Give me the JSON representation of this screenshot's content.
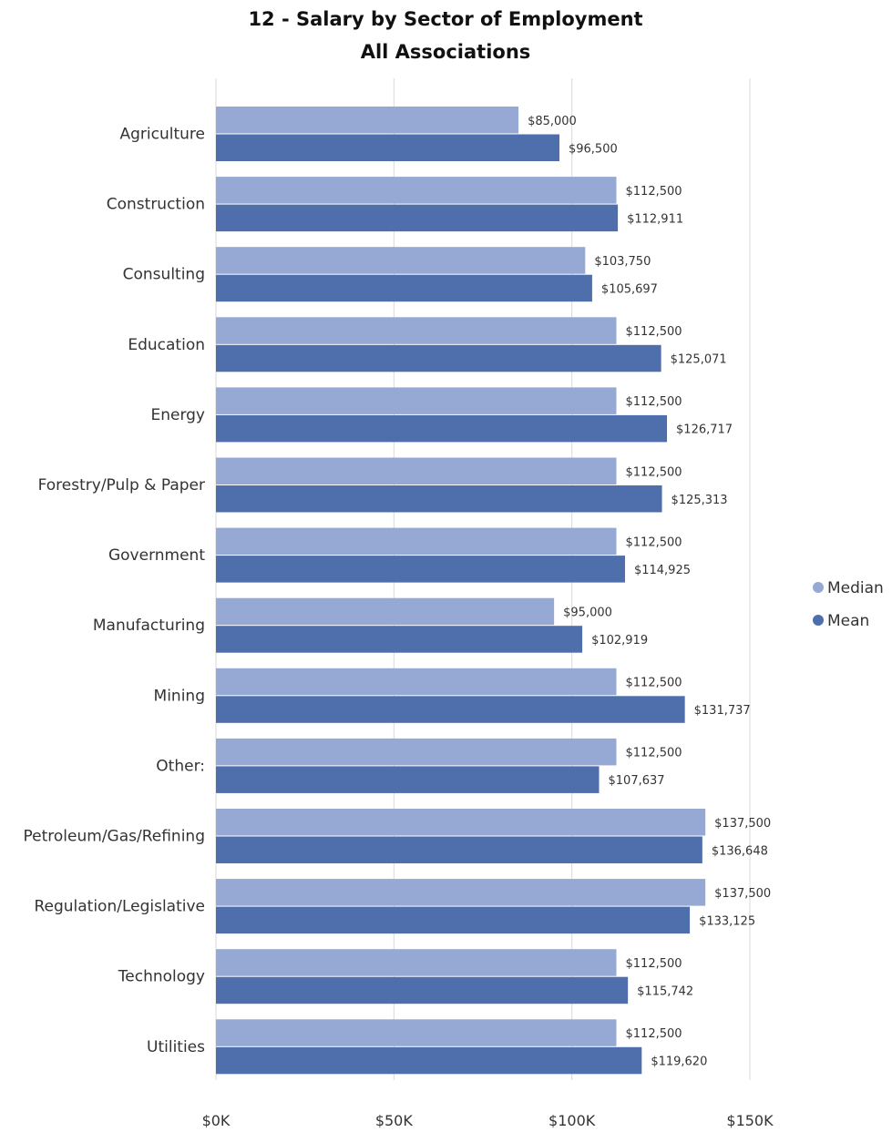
{
  "chart_data": {
    "type": "bar",
    "orientation": "horizontal",
    "title": "12 - Salary by Sector of Employment",
    "subtitle": "All Associations",
    "categories": [
      "Agriculture",
      "Construction",
      "Consulting",
      "Education",
      "Energy",
      "Forestry/Pulp & Paper",
      "Government",
      "Manufacturing",
      "Mining",
      "Other:",
      "Petroleum/Gas/Refining",
      "Regulation/Legislative",
      "Technology",
      "Utilities"
    ],
    "series": [
      {
        "name": "Median",
        "color": "#96a9d4",
        "values": [
          85000,
          112500,
          103750,
          112500,
          112500,
          112500,
          112500,
          95000,
          112500,
          112500,
          137500,
          137500,
          112500,
          112500
        ],
        "labels": [
          "$85,000",
          "$112,500",
          "$103,750",
          "$112,500",
          "$112,500",
          "$112,500",
          "$112,500",
          "$95,000",
          "$112,500",
          "$112,500",
          "$137,500",
          "$137,500",
          "$112,500",
          "$112,500"
        ]
      },
      {
        "name": "Mean",
        "color": "#4e6fac",
        "values": [
          96500,
          112911,
          105697,
          125071,
          126717,
          125313,
          114925,
          102919,
          131737,
          107637,
          136648,
          133125,
          115742,
          119620
        ],
        "labels": [
          "$96,500",
          "$112,911",
          "$105,697",
          "$125,071",
          "$126,717",
          "$125,313",
          "$114,925",
          "$102,919",
          "$131,737",
          "$107,637",
          "$136,648",
          "$133,125",
          "$115,742",
          "$119,620"
        ]
      }
    ],
    "xlim": [
      0,
      150000
    ],
    "xticks": [
      0,
      50000,
      100000,
      150000
    ],
    "xtick_labels": [
      "$0K",
      "$50K",
      "$100K",
      "$150K"
    ],
    "grid": true,
    "legend_position": "right"
  }
}
